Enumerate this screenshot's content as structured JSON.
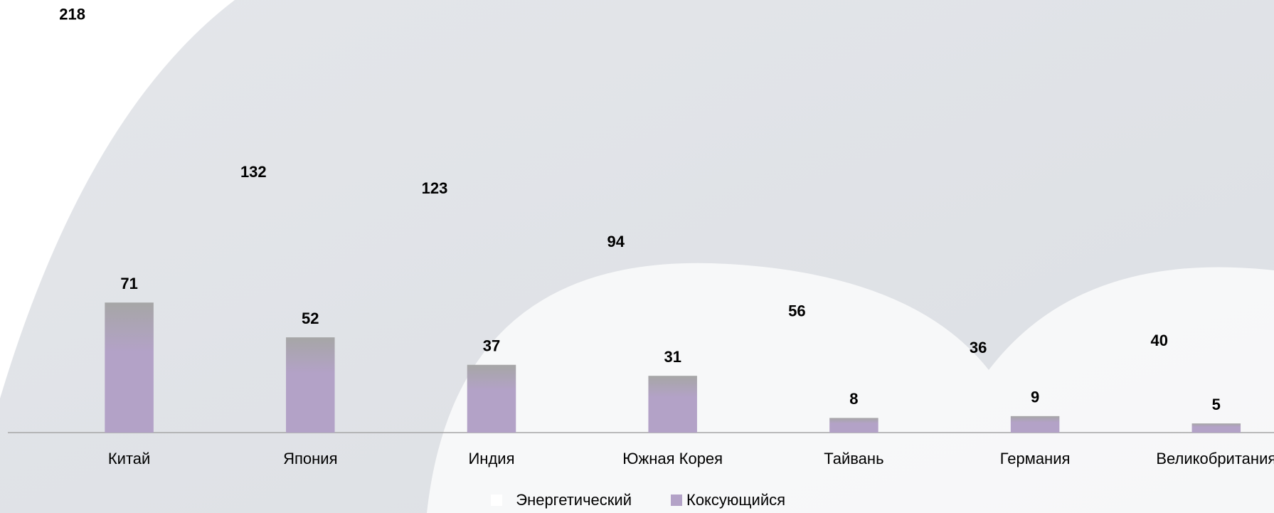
{
  "chart_data": {
    "type": "bar",
    "categories": [
      "Китай",
      "Япония",
      "Индия",
      "Южная Корея",
      "Тайвань",
      "Германия",
      "Великобритания"
    ],
    "series": [
      {
        "name": "Энергетический",
        "color": "#ffffff",
        "values": [
          218,
          132,
          123,
          94,
          56,
          36,
          40
        ]
      },
      {
        "name": "Коксующийся",
        "color": "#b3a2c7",
        "values": [
          71,
          52,
          37,
          31,
          8,
          9,
          5
        ]
      }
    ],
    "legend": "bottom"
  }
}
